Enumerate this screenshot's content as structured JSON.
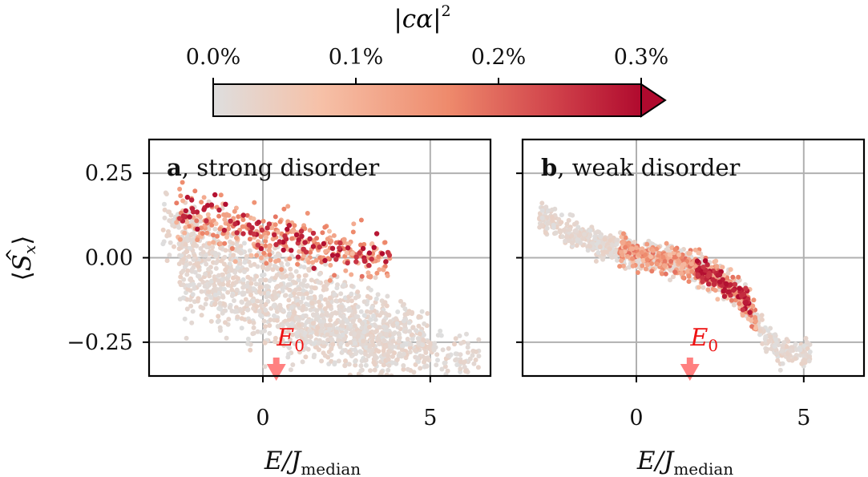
{
  "chart_data": {
    "type": "scatter",
    "colorbar": {
      "label": "|c_α|²",
      "label_text": "|cα|",
      "label_sup": "2",
      "tick_labels": [
        "0.0%",
        "0.1%",
        "0.2%",
        "0.3%"
      ],
      "tick_values": [
        0.0,
        0.1,
        0.2,
        0.3
      ],
      "range": [
        0.0,
        0.3
      ],
      "extend": "max",
      "colormap": [
        "#dedede",
        "#f6c1a8",
        "#ee8a6c",
        "#d0414a",
        "#b00a2e"
      ]
    },
    "ylabel": "⟨Ŝx⟩",
    "ylabel_parts": {
      "open": "⟨",
      "op": "S",
      "sub": "x",
      "close": "⟩"
    },
    "ylim": [
      -0.35,
      0.35
    ],
    "yticks": [
      0.25,
      0.0,
      -0.25
    ],
    "ytick_labels": [
      "0.25",
      "0.00",
      "−0.25"
    ],
    "grid": true,
    "marker_color": "#ff8080",
    "panels": [
      {
        "id": "a",
        "letter": "a",
        "title": "strong disorder",
        "xlabel": "E/J_median",
        "xlabel_parts": {
          "main": "E/J",
          "sub": "median"
        },
        "xlim": [
          -3.4,
          6.8
        ],
        "xticks": [
          0,
          5
        ],
        "xtick_labels": [
          "0",
          "5"
        ],
        "marker": {
          "label": "E",
          "sub": "0",
          "x": 0.4
        },
        "point_clusters": [
          {
            "x_range": [
              -3.0,
              5.0
            ],
            "y_center": 0.1,
            "y_spread": 0.08,
            "slope": -0.045,
            "count": 700,
            "weight": "low"
          },
          {
            "x_range": [
              -2.5,
              4.0
            ],
            "y_center": -0.05,
            "y_spread": 0.09,
            "slope": -0.04,
            "count": 700,
            "weight": "low"
          },
          {
            "x_range": [
              1.0,
              6.5
            ],
            "y_center": -0.2,
            "y_spread": 0.05,
            "slope": -0.02,
            "count": 250,
            "weight": "low"
          },
          {
            "x_range": [
              -2.6,
              3.8
            ],
            "y_center": 0.12,
            "y_spread": 0.06,
            "slope": -0.02,
            "count": 320,
            "weight": "mid"
          },
          {
            "x_range": [
              -2.5,
              3.8
            ],
            "y_center": 0.14,
            "y_spread": 0.05,
            "slope": -0.025,
            "count": 90,
            "weight": "high"
          }
        ]
      },
      {
        "id": "b",
        "letter": "b",
        "title": "weak disorder",
        "xlabel": "E/J_median",
        "xlabel_parts": {
          "main": "E/J",
          "sub": "median"
        },
        "xlim": [
          -3.4,
          6.8
        ],
        "xticks": [
          0,
          5
        ],
        "xtick_labels": [
          "0",
          "5"
        ],
        "marker": {
          "label": "E",
          "sub": "0",
          "x": 1.6
        },
        "curve": [
          [
            -2.9,
            0.13
          ],
          [
            -2.0,
            0.07
          ],
          [
            -1.0,
            0.04
          ],
          [
            0.0,
            0.01
          ],
          [
            1.0,
            -0.01
          ],
          [
            2.0,
            -0.04
          ],
          [
            2.7,
            -0.08
          ],
          [
            3.3,
            -0.13
          ],
          [
            3.7,
            -0.21
          ],
          [
            4.2,
            -0.27
          ],
          [
            5.2,
            -0.28
          ]
        ],
        "point_clusters": [
          {
            "curve_band": 0.02,
            "count": 900,
            "weight": "low"
          },
          {
            "curve_band": 0.02,
            "x_range": [
              -0.5,
              3.6
            ],
            "count": 400,
            "weight": "mid"
          },
          {
            "curve_band": 0.015,
            "x_range": [
              1.8,
              3.4
            ],
            "count": 90,
            "weight": "high"
          }
        ]
      }
    ]
  }
}
